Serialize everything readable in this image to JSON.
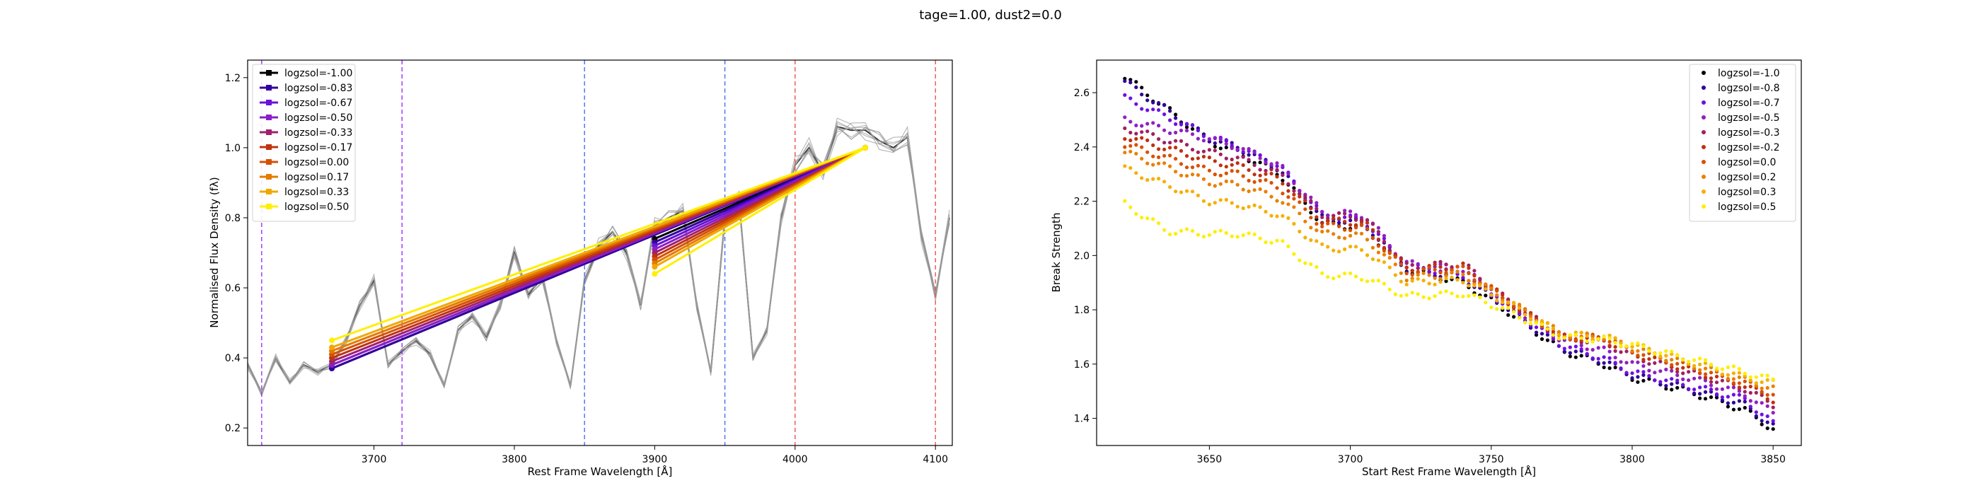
{
  "figure": {
    "suptitle": "tage=1.00, dust2=0.0"
  },
  "chart_data": [
    {
      "type": "line",
      "xlabel": "Rest Frame Wavelength [Å]",
      "ylabel": "Normalised Flux Density (fλ)",
      "xlim": [
        3610,
        4112
      ],
      "ylim": [
        0.15,
        1.25
      ],
      "xticks": [
        3700,
        3800,
        3900,
        4000,
        4100
      ],
      "yticks": [
        0.2,
        0.4,
        0.6,
        0.8,
        1.0,
        1.2
      ],
      "grid": false,
      "legend_position": "top-left",
      "vlines": [
        {
          "x": 3620,
          "color": "#9b30ff"
        },
        {
          "x": 3720,
          "color": "#9b30ff"
        },
        {
          "x": 3850,
          "color": "#4a6cf7"
        },
        {
          "x": 3950,
          "color": "#4a6cf7"
        },
        {
          "x": 4000,
          "color": "#f05050"
        },
        {
          "x": 4100,
          "color": "#f05050"
        }
      ],
      "spectrum": {
        "x": [
          3610,
          3620,
          3630,
          3640,
          3650,
          3660,
          3670,
          3680,
          3690,
          3700,
          3710,
          3720,
          3730,
          3740,
          3750,
          3760,
          3770,
          3780,
          3790,
          3800,
          3810,
          3820,
          3830,
          3840,
          3850,
          3860,
          3870,
          3880,
          3890,
          3900,
          3910,
          3920,
          3930,
          3940,
          3950,
          3960,
          3970,
          3980,
          3990,
          4000,
          4010,
          4020,
          4030,
          4040,
          4050,
          4060,
          4070,
          4080,
          4090,
          4100,
          4110
        ],
        "y": [
          0.38,
          0.3,
          0.4,
          0.33,
          0.38,
          0.36,
          0.38,
          0.45,
          0.55,
          0.62,
          0.38,
          0.42,
          0.45,
          0.41,
          0.32,
          0.48,
          0.52,
          0.46,
          0.55,
          0.7,
          0.58,
          0.63,
          0.45,
          0.32,
          0.62,
          0.72,
          0.76,
          0.7,
          0.55,
          0.78,
          0.8,
          0.82,
          0.55,
          0.36,
          0.8,
          0.85,
          0.4,
          0.48,
          0.8,
          0.95,
          1.0,
          0.93,
          1.06,
          1.05,
          1.05,
          1.02,
          1.0,
          1.03,
          0.75,
          0.58,
          0.8
        ],
        "variant_count": 10,
        "variant_offsets": [
          0.0,
          0.02,
          -0.015,
          0.03,
          -0.025,
          0.01,
          -0.01,
          0.025,
          -0.03,
          0.015
        ]
      },
      "series": [
        {
          "name": "logzsol=-1.00",
          "color": "#000000",
          "blue": [
            [
              3670,
              0.37
            ],
            [
              4050,
              1.0
            ]
          ],
          "red": [
            [
              3900,
              0.74
            ],
            [
              4050,
              1.0
            ]
          ]
        },
        {
          "name": "logzsol=-0.83",
          "color": "#33009e",
          "blue": [
            [
              3670,
              0.37
            ],
            [
              4050,
              1.0
            ]
          ],
          "red": [
            [
              3900,
              0.73
            ],
            [
              4050,
              1.0
            ]
          ]
        },
        {
          "name": "logzsol=-0.67",
          "color": "#6a10d8",
          "blue": [
            [
              3670,
              0.38
            ],
            [
              4050,
              1.0
            ]
          ],
          "red": [
            [
              3900,
              0.72
            ],
            [
              4050,
              1.0
            ]
          ]
        },
        {
          "name": "logzsol=-0.50",
          "color": "#8a1ec8",
          "blue": [
            [
              3670,
              0.38
            ],
            [
              4050,
              1.0
            ]
          ],
          "red": [
            [
              3900,
              0.71
            ],
            [
              4050,
              1.0
            ]
          ]
        },
        {
          "name": "logzsol=-0.33",
          "color": "#a0206e",
          "blue": [
            [
              3670,
              0.39
            ],
            [
              4050,
              1.0
            ]
          ],
          "red": [
            [
              3900,
              0.7
            ],
            [
              4050,
              1.0
            ]
          ]
        },
        {
          "name": "logzsol=-0.17",
          "color": "#c03212",
          "blue": [
            [
              3670,
              0.4
            ],
            [
              4050,
              1.0
            ]
          ],
          "red": [
            [
              3900,
              0.69
            ],
            [
              4050,
              1.0
            ]
          ]
        },
        {
          "name": "logzsol=0.00",
          "color": "#d45004",
          "blue": [
            [
              3670,
              0.41
            ],
            [
              4050,
              1.0
            ]
          ],
          "red": [
            [
              3900,
              0.68
            ],
            [
              4050,
              1.0
            ]
          ]
        },
        {
          "name": "logzsol=0.17",
          "color": "#e57a00",
          "blue": [
            [
              3670,
              0.42
            ],
            [
              4050,
              1.0
            ]
          ],
          "red": [
            [
              3900,
              0.67
            ],
            [
              4050,
              1.0
            ]
          ]
        },
        {
          "name": "logzsol=0.33",
          "color": "#f0a800",
          "blue": [
            [
              3670,
              0.43
            ],
            [
              4050,
              1.0
            ]
          ],
          "red": [
            [
              3900,
              0.66
            ],
            [
              4050,
              1.0
            ]
          ]
        },
        {
          "name": "logzsol=0.50",
          "color": "#ffef00",
          "blue": [
            [
              3670,
              0.45
            ],
            [
              4050,
              1.0
            ]
          ],
          "red": [
            [
              3900,
              0.64
            ],
            [
              4050,
              1.0
            ]
          ]
        }
      ]
    },
    {
      "type": "scatter",
      "xlabel": "Start Rest Frame Wavelength [Å]",
      "ylabel": "Break Strength",
      "xlim": [
        3610,
        3860
      ],
      "ylim": [
        1.3,
        2.72
      ],
      "xticks": [
        3650,
        3700,
        3750,
        3800,
        3850
      ],
      "yticks": [
        1.4,
        1.6,
        1.8,
        2.0,
        2.2,
        2.4,
        2.6
      ],
      "grid": false,
      "legend_position": "top-right",
      "x_start": 3620,
      "x_end": 3850,
      "x_step": 2,
      "series": [
        {
          "name": "logzsol=-1.0",
          "color": "#000000",
          "knots": [
            [
              3620,
              2.66
            ],
            [
              3650,
              2.42
            ],
            [
              3660,
              2.38
            ],
            [
              3675,
              2.3
            ],
            [
              3690,
              2.12
            ],
            [
              3705,
              2.1
            ],
            [
              3720,
              1.95
            ],
            [
              3740,
              1.9
            ],
            [
              3755,
              1.8
            ],
            [
              3775,
              1.65
            ],
            [
              3790,
              1.6
            ],
            [
              3800,
              1.55
            ],
            [
              3820,
              1.5
            ],
            [
              3840,
              1.43
            ],
            [
              3850,
              1.36
            ]
          ]
        },
        {
          "name": "logzsol=-0.8",
          "color": "#30009a",
          "knots": [
            [
              3620,
              2.64
            ],
            [
              3650,
              2.43
            ],
            [
              3660,
              2.4
            ],
            [
              3675,
              2.32
            ],
            [
              3690,
              2.14
            ],
            [
              3705,
              2.12
            ],
            [
              3720,
              1.95
            ],
            [
              3740,
              1.92
            ],
            [
              3755,
              1.81
            ],
            [
              3775,
              1.66
            ],
            [
              3790,
              1.61
            ],
            [
              3800,
              1.56
            ],
            [
              3820,
              1.51
            ],
            [
              3840,
              1.45
            ],
            [
              3850,
              1.37
            ]
          ]
        },
        {
          "name": "logzsol=-0.7",
          "color": "#7010e0",
          "knots": [
            [
              3620,
              2.58
            ],
            [
              3650,
              2.44
            ],
            [
              3660,
              2.4
            ],
            [
              3675,
              2.33
            ],
            [
              3690,
              2.15
            ],
            [
              3705,
              2.13
            ],
            [
              3720,
              1.96
            ],
            [
              3740,
              1.93
            ],
            [
              3755,
              1.82
            ],
            [
              3775,
              1.67
            ],
            [
              3790,
              1.62
            ],
            [
              3800,
              1.57
            ],
            [
              3820,
              1.52
            ],
            [
              3840,
              1.47
            ],
            [
              3850,
              1.38
            ]
          ]
        },
        {
          "name": "logzsol=-0.5",
          "color": "#9020c0",
          "knots": [
            [
              3620,
              2.5
            ],
            [
              3650,
              2.43
            ],
            [
              3660,
              2.4
            ],
            [
              3675,
              2.33
            ],
            [
              3690,
              2.16
            ],
            [
              3705,
              2.15
            ],
            [
              3720,
              1.97
            ],
            [
              3740,
              1.95
            ],
            [
              3755,
              1.83
            ],
            [
              3775,
              1.69
            ],
            [
              3790,
              1.65
            ],
            [
              3800,
              1.6
            ],
            [
              3820,
              1.55
            ],
            [
              3840,
              1.49
            ],
            [
              3850,
              1.42
            ]
          ]
        },
        {
          "name": "logzsol=-0.3",
          "color": "#a02060",
          "knots": [
            [
              3620,
              2.47
            ],
            [
              3650,
              2.38
            ],
            [
              3660,
              2.36
            ],
            [
              3675,
              2.3
            ],
            [
              3690,
              2.15
            ],
            [
              3705,
              2.14
            ],
            [
              3720,
              1.96
            ],
            [
              3740,
              1.97
            ],
            [
              3755,
              1.84
            ],
            [
              3775,
              1.7
            ],
            [
              3790,
              1.68
            ],
            [
              3800,
              1.63
            ],
            [
              3820,
              1.57
            ],
            [
              3840,
              1.51
            ],
            [
              3850,
              1.45
            ]
          ]
        },
        {
          "name": "logzsol=-0.2",
          "color": "#c03010",
          "knots": [
            [
              3620,
              2.44
            ],
            [
              3650,
              2.35
            ],
            [
              3660,
              2.33
            ],
            [
              3675,
              2.28
            ],
            [
              3690,
              2.13
            ],
            [
              3705,
              2.12
            ],
            [
              3720,
              1.95
            ],
            [
              3740,
              1.96
            ],
            [
              3755,
              1.84
            ],
            [
              3775,
              1.7
            ],
            [
              3790,
              1.69
            ],
            [
              3800,
              1.64
            ],
            [
              3820,
              1.58
            ],
            [
              3840,
              1.52
            ],
            [
              3850,
              1.47
            ]
          ]
        },
        {
          "name": "logzsol=0.0",
          "color": "#d85000",
          "knots": [
            [
              3620,
              2.41
            ],
            [
              3650,
              2.31
            ],
            [
              3660,
              2.3
            ],
            [
              3675,
              2.25
            ],
            [
              3690,
              2.11
            ],
            [
              3705,
              2.1
            ],
            [
              3720,
              1.94
            ],
            [
              3740,
              1.95
            ],
            [
              3755,
              1.84
            ],
            [
              3775,
              1.7
            ],
            [
              3790,
              1.7
            ],
            [
              3800,
              1.65
            ],
            [
              3820,
              1.59
            ],
            [
              3840,
              1.53
            ],
            [
              3850,
              1.49
            ]
          ]
        },
        {
          "name": "logzsol=0.2",
          "color": "#e88000",
          "knots": [
            [
              3620,
              2.38
            ],
            [
              3650,
              2.27
            ],
            [
              3660,
              2.26
            ],
            [
              3675,
              2.21
            ],
            [
              3690,
              2.08
            ],
            [
              3705,
              2.07
            ],
            [
              3720,
              1.92
            ],
            [
              3740,
              1.93
            ],
            [
              3755,
              1.84
            ],
            [
              3775,
              1.71
            ],
            [
              3790,
              1.7
            ],
            [
              3800,
              1.66
            ],
            [
              3820,
              1.6
            ],
            [
              3840,
              1.54
            ],
            [
              3850,
              1.51
            ]
          ]
        },
        {
          "name": "logzsol=0.3",
          "color": "#f4b000",
          "knots": [
            [
              3620,
              2.32
            ],
            [
              3650,
              2.2
            ],
            [
              3660,
              2.19
            ],
            [
              3675,
              2.15
            ],
            [
              3690,
              2.03
            ],
            [
              3705,
              2.02
            ],
            [
              3720,
              1.9
            ],
            [
              3740,
              1.91
            ],
            [
              3755,
              1.83
            ],
            [
              3775,
              1.71
            ],
            [
              3790,
              1.7
            ],
            [
              3800,
              1.67
            ],
            [
              3820,
              1.61
            ],
            [
              3840,
              1.55
            ],
            [
              3850,
              1.53
            ]
          ]
        },
        {
          "name": "logzsol=0.5",
          "color": "#ffee00",
          "knots": [
            [
              3620,
              2.19
            ],
            [
              3635,
              2.09
            ],
            [
              3650,
              2.08
            ],
            [
              3660,
              2.08
            ],
            [
              3675,
              2.05
            ],
            [
              3690,
              1.93
            ],
            [
              3705,
              1.92
            ],
            [
              3720,
              1.85
            ],
            [
              3740,
              1.86
            ],
            [
              3755,
              1.8
            ],
            [
              3775,
              1.7
            ],
            [
              3790,
              1.69
            ],
            [
              3800,
              1.67
            ],
            [
              3820,
              1.62
            ],
            [
              3840,
              1.57
            ],
            [
              3850,
              1.54
            ]
          ]
        }
      ]
    }
  ]
}
